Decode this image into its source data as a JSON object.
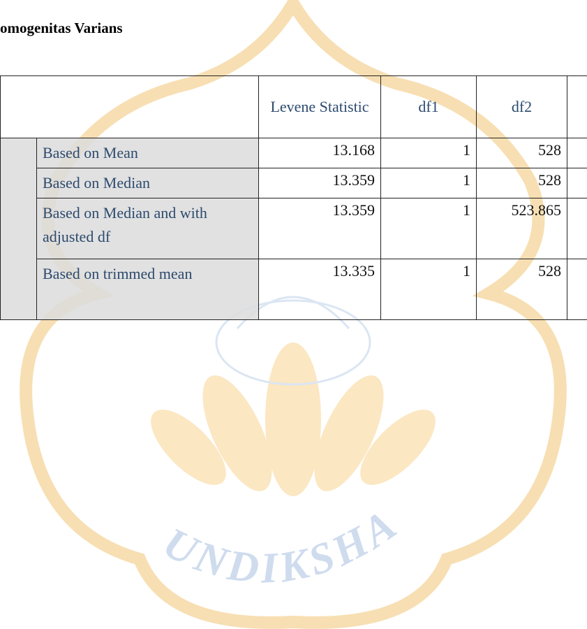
{
  "header": {
    "title": "omogenitas Varians"
  },
  "table": {
    "columns": [
      "Levene Statistic",
      "df1",
      "df2"
    ],
    "rows": [
      [
        "Based on Mean",
        "13.168",
        "1",
        "528"
      ],
      [
        "Based on Median",
        "13.359",
        "1",
        "528"
      ],
      [
        "Based on Median and with adjusted df",
        "13.359",
        "1",
        "523.865"
      ],
      [
        "Based on trimmed mean",
        "13.335",
        "1",
        "528"
      ]
    ]
  },
  "watermark": {
    "text": "UNDIKSHA"
  }
}
